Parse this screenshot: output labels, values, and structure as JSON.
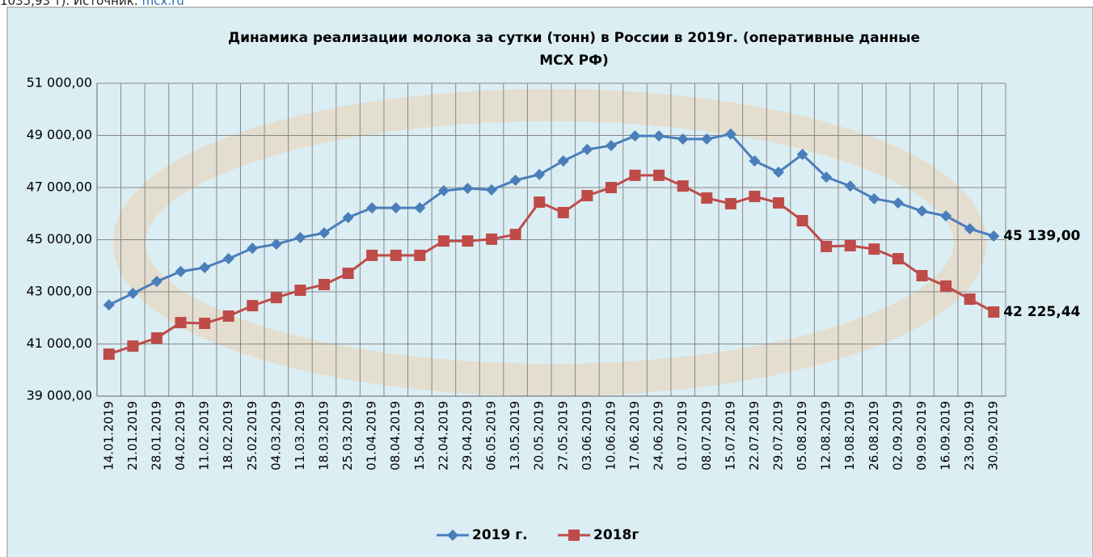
{
  "source_note": "1035,93 т). Источник:",
  "source_link": "mcx.ru",
  "chart_data": {
    "type": "line",
    "title_lines": [
      "Динамика реализации молока за сутки (тонн) в России в 2019г. (оперативные данные",
      "МСХ РФ)"
    ],
    "categories": [
      "14.01.2019",
      "21.01.2019",
      "28.01.2019",
      "04.02.2019",
      "11.02.2019",
      "18.02.2019",
      "25.02.2019",
      "04.03.2019",
      "11.03.2019",
      "18.03.2019",
      "25.03.2019",
      "01.04.2019",
      "08.04.2019",
      "15.04.2019",
      "22.04.2019",
      "29.04.2019",
      "06.05.2019",
      "13.05.2019",
      "20.05.2019",
      "27.05.2019",
      "03.06.2019",
      "10.06.2019",
      "17.06.2019",
      "24.06.2019",
      "01.07.2019",
      "08.07.2019",
      "15.07.2019",
      "22.07.2019",
      "29.07.2019",
      "05.08.2019",
      "12.08.2019",
      "19.08.2019",
      "26.08.2019",
      "02.09.2019",
      "09.09.2019",
      "16.09.2019",
      "23.09.2019",
      "30.09.2019"
    ],
    "series": [
      {
        "name": "2019 г.",
        "color": "#4a7ebb",
        "marker": "diamond",
        "values": [
          42500,
          42940,
          43400,
          43780,
          43930,
          44270,
          44670,
          44830,
          45080,
          45260,
          45850,
          46220,
          46220,
          46220,
          46880,
          46970,
          46910,
          47280,
          47500,
          48020,
          48460,
          48610,
          48980,
          48980,
          48860,
          48860,
          49050,
          48020,
          47590,
          48270,
          47400,
          47060,
          46570,
          46410,
          46100,
          45910,
          45420,
          45139
        ],
        "value_labels": [
          null,
          null,
          null,
          null,
          null,
          null,
          null,
          null,
          null,
          null,
          null,
          null,
          null,
          null,
          null,
          null,
          null,
          null,
          null,
          null,
          null,
          null,
          null,
          null,
          null,
          null,
          null,
          null,
          null,
          null,
          null,
          null,
          null,
          null,
          null,
          null,
          null,
          "45 139,00"
        ]
      },
      {
        "name": "2018г",
        "color": "#be4b48",
        "marker": "square",
        "values": [
          40610,
          40920,
          41230,
          41820,
          41790,
          42070,
          42470,
          42780,
          43060,
          43280,
          43710,
          44400,
          44400,
          44400,
          44950,
          44950,
          45020,
          45200,
          46440,
          46040,
          46690,
          47000,
          47470,
          47470,
          47060,
          46600,
          46380,
          46660,
          46410,
          45730,
          44740,
          44770,
          44640,
          44270,
          43620,
          43220,
          42720,
          42225.44
        ],
        "value_labels": [
          null,
          null,
          null,
          null,
          null,
          null,
          null,
          null,
          null,
          null,
          null,
          null,
          null,
          null,
          null,
          null,
          null,
          null,
          null,
          null,
          null,
          null,
          null,
          null,
          null,
          null,
          null,
          null,
          null,
          null,
          null,
          null,
          null,
          null,
          null,
          null,
          null,
          "42 225,44"
        ]
      }
    ],
    "ylim": [
      39000,
      51000
    ],
    "yticks": [
      {
        "value": 39000,
        "label": "39 000,00"
      },
      {
        "value": 41000,
        "label": "41 000,00"
      },
      {
        "value": 43000,
        "label": "43 000,00"
      },
      {
        "value": 45000,
        "label": "45 000,00"
      },
      {
        "value": 47000,
        "label": "47 000,00"
      },
      {
        "value": 49000,
        "label": "49 000,00"
      },
      {
        "value": 51000,
        "label": "51 000,00"
      }
    ],
    "grid": true,
    "legend": "bottom"
  }
}
